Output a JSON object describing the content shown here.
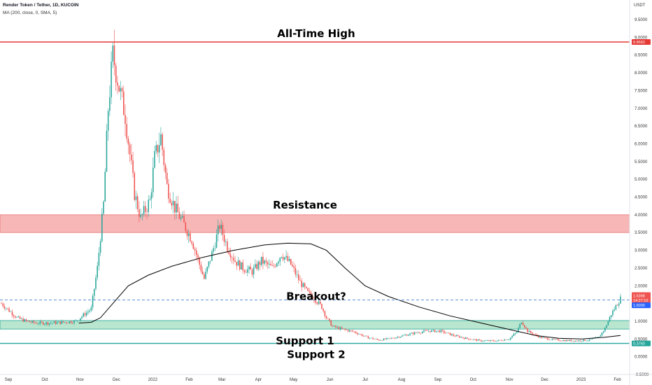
{
  "header": {
    "title": "Render Token / Tether, 1D, KUCOIN",
    "indicator": "MA (200, close, 0, SMA, 5)",
    "currency": "USDT"
  },
  "chart_data": {
    "type": "candlestick",
    "ylim": [
      -0.5,
      9.5
    ],
    "y_ticks": [
      "9.5000",
      "9.0000",
      "8.5000",
      "8.0000",
      "7.5000",
      "7.0000",
      "6.5000",
      "6.0000",
      "5.5000",
      "5.0000",
      "4.5000",
      "4.0000",
      "3.5000",
      "3.0000",
      "2.5000",
      "2.0000",
      "1.5000",
      "1.0000",
      "0.5000",
      "0.0000",
      "-0.5000"
    ],
    "x_ticks": [
      "Sep",
      "Oct",
      "Nov",
      "Dec",
      "2022",
      "Feb",
      "Mar",
      "Apr",
      "May",
      "Jun",
      "Jul",
      "Aug",
      "Sep",
      "Oct",
      "Nov",
      "Dec",
      "2023",
      "Feb"
    ],
    "price_tags": {
      "all_time_high": "8.8683",
      "last_price": "1.6398",
      "countdown": "14:27:10",
      "breakout_level": "1.6000",
      "support_2": "0.3760"
    },
    "annotations": {
      "all_time_high": "All-Time High",
      "resistance": "Resistance",
      "breakout": "Breakout?",
      "support_1": "Support 1",
      "support_2": "Support 2"
    },
    "levels": {
      "all_time_high": 8.8683,
      "resistance_zone": [
        3.5,
        4.0
      ],
      "breakout": 1.6,
      "support_1_zone": [
        0.78,
        1.02
      ],
      "support_2": 0.376
    },
    "price_path": [
      [
        0,
        1.5
      ],
      [
        5,
        1.3
      ],
      [
        10,
        1.1
      ],
      [
        16,
        1.0
      ],
      [
        22,
        0.95
      ],
      [
        30,
        0.95
      ],
      [
        40,
        0.97
      ],
      [
        48,
        1.0
      ],
      [
        58,
        1.35
      ],
      [
        62,
        2.5
      ],
      [
        66,
        4.3
      ],
      [
        69,
        7.0
      ],
      [
        72,
        8.5
      ],
      [
        76,
        7.6
      ],
      [
        80,
        6.8
      ],
      [
        86,
        4.6
      ],
      [
        90,
        3.9
      ],
      [
        96,
        4.4
      ],
      [
        99,
        5.6
      ],
      [
        103,
        6.2
      ],
      [
        107,
        4.8
      ],
      [
        112,
        4.2
      ],
      [
        117,
        3.8
      ],
      [
        123,
        3.3
      ],
      [
        128,
        2.6
      ],
      [
        131,
        2.2
      ],
      [
        136,
        2.9
      ],
      [
        141,
        3.7
      ],
      [
        146,
        3.1
      ],
      [
        151,
        2.7
      ],
      [
        156,
        2.5
      ],
      [
        162,
        2.4
      ],
      [
        168,
        2.7
      ],
      [
        175,
        2.5
      ],
      [
        181,
        2.9
      ],
      [
        187,
        2.6
      ],
      [
        193,
        2.1
      ],
      [
        198,
        1.8
      ],
      [
        203,
        1.6
      ],
      [
        207,
        1.4
      ],
      [
        210,
        1.1
      ],
      [
        214,
        0.85
      ],
      [
        220,
        0.78
      ],
      [
        228,
        0.7
      ],
      [
        236,
        0.55
      ],
      [
        244,
        0.47
      ],
      [
        252,
        0.52
      ],
      [
        260,
        0.6
      ],
      [
        268,
        0.68
      ],
      [
        276,
        0.73
      ],
      [
        284,
        0.72
      ],
      [
        292,
        0.6
      ],
      [
        300,
        0.52
      ],
      [
        310,
        0.45
      ],
      [
        320,
        0.45
      ],
      [
        328,
        0.5
      ],
      [
        333,
        0.7
      ],
      [
        336,
        1.0
      ],
      [
        340,
        0.72
      ],
      [
        348,
        0.55
      ],
      [
        356,
        0.48
      ],
      [
        364,
        0.46
      ],
      [
        372,
        0.45
      ],
      [
        380,
        0.47
      ],
      [
        386,
        0.55
      ],
      [
        390,
        0.8
      ],
      [
        394,
        1.2
      ],
      [
        398,
        1.5
      ],
      [
        400,
        1.64
      ]
    ],
    "ma_path": [
      [
        50,
        0.95
      ],
      [
        58,
        0.97
      ],
      [
        64,
        1.1
      ],
      [
        72,
        1.5
      ],
      [
        82,
        2.0
      ],
      [
        95,
        2.3
      ],
      [
        110,
        2.55
      ],
      [
        130,
        2.8
      ],
      [
        150,
        3.0
      ],
      [
        170,
        3.15
      ],
      [
        185,
        3.2
      ],
      [
        200,
        3.18
      ],
      [
        210,
        3.0
      ],
      [
        222,
        2.5
      ],
      [
        235,
        2.0
      ],
      [
        250,
        1.7
      ],
      [
        270,
        1.4
      ],
      [
        290,
        1.15
      ],
      [
        310,
        0.95
      ],
      [
        330,
        0.75
      ],
      [
        345,
        0.6
      ],
      [
        360,
        0.52
      ],
      [
        375,
        0.5
      ],
      [
        390,
        0.55
      ],
      [
        400,
        0.6
      ]
    ],
    "colors": {
      "up": "#26a69a",
      "down": "#ef5350",
      "ma": "#000000",
      "all_time_high_line": "#e53935",
      "resistance_fill": "#f8b7b7",
      "support_fill": "#b9e6cf",
      "support_line": "#26a69a",
      "breakout_line": "#5b8fd6",
      "price_tag": "#ef5350",
      "breakout_tag": "#2962ff",
      "support_tag": "#26a69a"
    }
  }
}
